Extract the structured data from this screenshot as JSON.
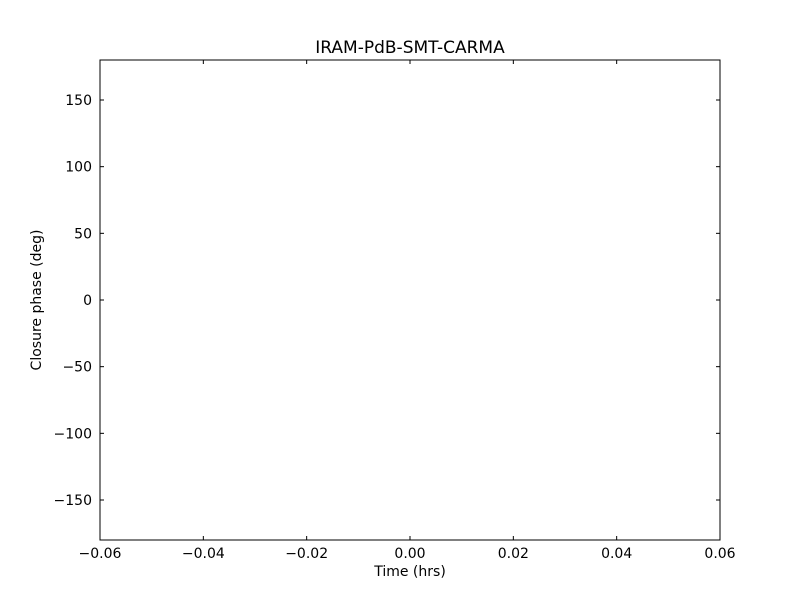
{
  "chart_data": {
    "type": "scatter",
    "title": "IRAM-PdB-SMT-CARMA",
    "xlabel": "Time (hrs)",
    "ylabel": "Closure phase (deg)",
    "xlim": [
      -0.06,
      0.06
    ],
    "ylim": [
      -180,
      180
    ],
    "xticks": [
      -0.06,
      -0.04,
      -0.02,
      0.0,
      0.02,
      0.04,
      0.06
    ],
    "xtick_labels": [
      "−0.06",
      "−0.04",
      "−0.02",
      "0.00",
      "0.02",
      "0.04",
      "0.06"
    ],
    "yticks": [
      150,
      100,
      50,
      0,
      -50,
      -100,
      -150
    ],
    "ytick_labels": [
      "150",
      "100",
      "50",
      "0",
      "−50",
      "−100",
      "−150"
    ],
    "grid": false,
    "series": [
      {
        "x": [],
        "y": []
      }
    ]
  }
}
